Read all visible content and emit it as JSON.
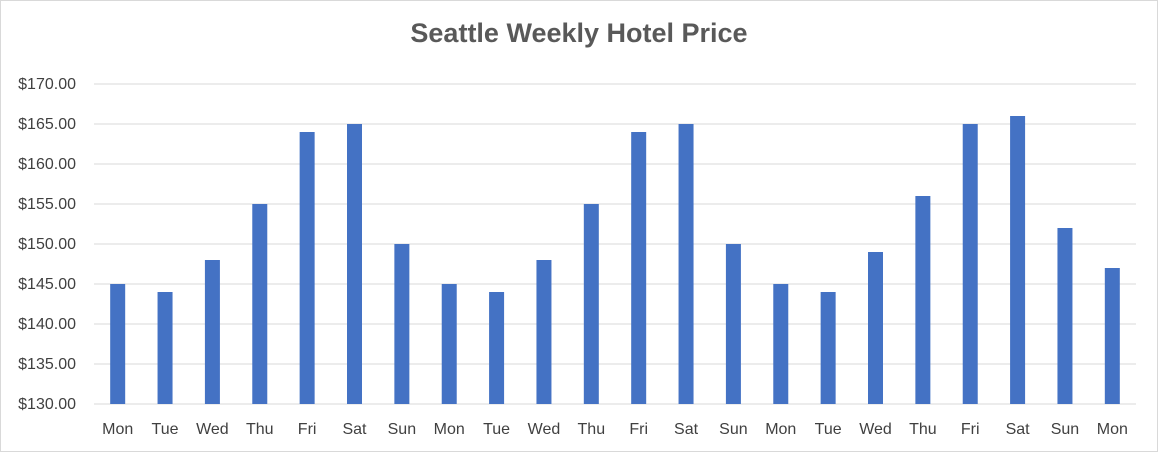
{
  "chart_data": {
    "type": "bar",
    "title": "Seattle Weekly Hotel Price",
    "xlabel": "",
    "ylabel": "",
    "categories": [
      "Mon",
      "Tue",
      "Wed",
      "Thu",
      "Fri",
      "Sat",
      "Sun",
      "Mon",
      "Tue",
      "Wed",
      "Thu",
      "Fri",
      "Sat",
      "Sun",
      "Mon",
      "Tue",
      "Wed",
      "Thu",
      "Fri",
      "Sat",
      "Sun",
      "Mon"
    ],
    "values": [
      145,
      144,
      148,
      155,
      164,
      165,
      150,
      145,
      144,
      148,
      155,
      164,
      165,
      150,
      145,
      144,
      149,
      156,
      165,
      166,
      152,
      147
    ],
    "ylim": [
      130,
      170
    ],
    "yticks": [
      130,
      135,
      140,
      145,
      150,
      155,
      160,
      165,
      170
    ],
    "ytick_labels": [
      "$130.00",
      "$135.00",
      "$140.00",
      "$145.00",
      "$150.00",
      "$155.00",
      "$160.00",
      "$165.00",
      "$170.00"
    ],
    "grid": true,
    "legend": "none",
    "bar_color": "#4472c4",
    "grid_color": "#d9d9d9"
  }
}
